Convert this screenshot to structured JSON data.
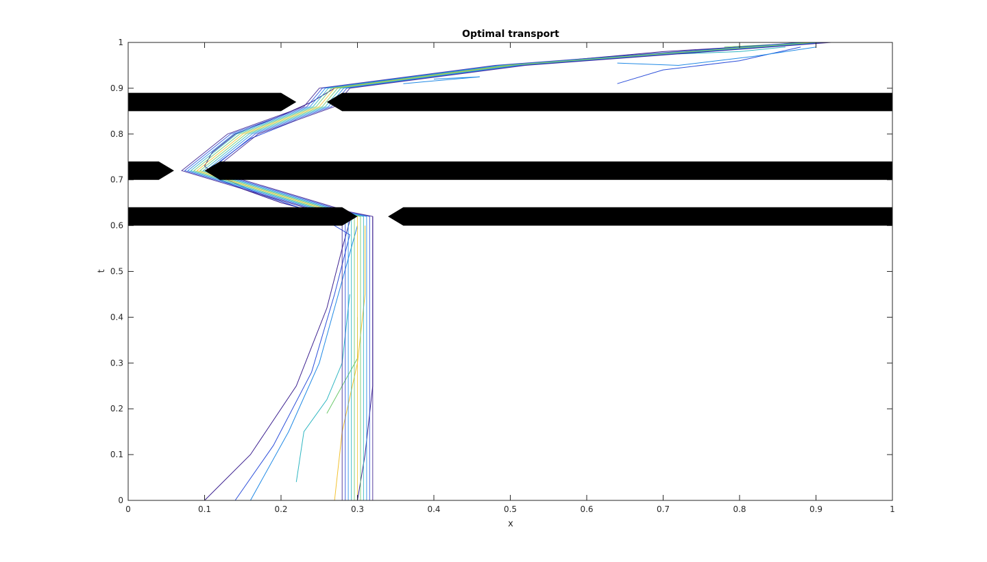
{
  "chart_data": {
    "type": "contour",
    "title": "Optimal transport",
    "xlabel": "x",
    "ylabel": "t",
    "xlim": [
      0,
      1
    ],
    "ylim": [
      0,
      1
    ],
    "xticks": [
      "0",
      "0.1",
      "0.2",
      "0.3",
      "0.4",
      "0.5",
      "0.6",
      "0.7",
      "0.8",
      "0.9",
      "1"
    ],
    "yticks": [
      "0",
      "0.1",
      "0.2",
      "0.3",
      "0.4",
      "0.5",
      "0.6",
      "0.7",
      "0.8",
      "0.9",
      "1"
    ],
    "grid": false,
    "colormap": [
      "#3b1f8f",
      "#2a4dd9",
      "#1e88e5",
      "#2cb5c0",
      "#6cc96a",
      "#f2c12e"
    ],
    "obstacle_color": "#000000",
    "barriers": [
      {
        "t": 0.87,
        "segments": [
          [
            0.0,
            0.22
          ],
          [
            0.26,
            1.0
          ]
        ]
      },
      {
        "t": 0.72,
        "segments": [
          [
            0.0,
            0.06
          ],
          [
            0.1,
            1.0
          ]
        ]
      },
      {
        "t": 0.62,
        "segments": [
          [
            0.0,
            0.3
          ],
          [
            0.34,
            1.0
          ]
        ]
      }
    ],
    "transport_path": [
      [
        0.3,
        0.0
      ],
      [
        0.3,
        0.62
      ],
      [
        0.27,
        0.63
      ],
      [
        0.09,
        0.72
      ],
      [
        0.15,
        0.8
      ],
      [
        0.25,
        0.86
      ],
      [
        0.27,
        0.9
      ],
      [
        0.5,
        0.95
      ],
      [
        0.9,
        1.0
      ]
    ],
    "contour_lines": [
      {
        "level": 1,
        "points": [
          [
            0.1,
            0.0
          ],
          [
            0.16,
            0.1
          ],
          [
            0.22,
            0.25
          ],
          [
            0.26,
            0.42
          ],
          [
            0.28,
            0.55
          ],
          [
            0.29,
            0.61
          ],
          [
            0.2,
            0.65
          ],
          [
            0.15,
            0.68
          ],
          [
            0.12,
            0.7
          ],
          [
            0.1,
            0.73
          ],
          [
            0.11,
            0.76
          ],
          [
            0.14,
            0.8
          ],
          [
            0.2,
            0.84
          ],
          [
            0.24,
            0.87
          ],
          [
            0.27,
            0.9
          ],
          [
            0.35,
            0.92
          ],
          [
            0.5,
            0.95
          ],
          [
            0.7,
            0.98
          ],
          [
            0.9,
            1.0
          ]
        ]
      },
      {
        "level": 2,
        "points": [
          [
            0.14,
            0.0
          ],
          [
            0.19,
            0.12
          ],
          [
            0.24,
            0.28
          ],
          [
            0.27,
            0.45
          ],
          [
            0.29,
            0.58
          ],
          [
            0.24,
            0.63
          ],
          [
            0.17,
            0.67
          ],
          [
            0.13,
            0.7
          ],
          [
            0.12,
            0.74
          ],
          [
            0.16,
            0.79
          ],
          [
            0.22,
            0.83
          ]
        ]
      },
      {
        "level": 3,
        "points": [
          [
            0.16,
            0.0
          ],
          [
            0.21,
            0.15
          ],
          [
            0.25,
            0.3
          ],
          [
            0.28,
            0.48
          ],
          [
            0.3,
            0.6
          ]
        ]
      },
      {
        "level": 4,
        "points": [
          [
            0.22,
            0.04
          ],
          [
            0.23,
            0.15
          ],
          [
            0.26,
            0.22
          ],
          [
            0.28,
            0.3
          ],
          [
            0.29,
            0.45
          ]
        ]
      },
      {
        "level": 5,
        "points": [
          [
            0.26,
            0.19
          ],
          [
            0.28,
            0.25
          ],
          [
            0.3,
            0.31
          ],
          [
            0.3,
            0.4
          ]
        ]
      },
      {
        "level": 6,
        "points": [
          [
            0.27,
            0.0
          ],
          [
            0.28,
            0.15
          ],
          [
            0.3,
            0.3
          ],
          [
            0.31,
            0.45
          ],
          [
            0.31,
            0.6
          ]
        ]
      },
      {
        "level": 1,
        "points": [
          [
            0.3,
            0.0
          ],
          [
            0.31,
            0.1
          ],
          [
            0.32,
            0.25
          ],
          [
            0.32,
            0.45
          ],
          [
            0.32,
            0.62
          ]
        ]
      },
      {
        "level": 3,
        "points": [
          [
            0.4,
            0.92
          ],
          [
            0.46,
            0.925
          ],
          [
            0.36,
            0.91
          ]
        ]
      },
      {
        "level": 2,
        "points": [
          [
            0.64,
            0.91
          ],
          [
            0.7,
            0.94
          ],
          [
            0.8,
            0.96
          ],
          [
            0.88,
            0.99
          ]
        ]
      },
      {
        "level": 3,
        "points": [
          [
            0.64,
            0.955
          ],
          [
            0.72,
            0.95
          ],
          [
            0.82,
            0.97
          ],
          [
            0.9,
            0.99
          ]
        ]
      },
      {
        "level": 4,
        "points": [
          [
            0.72,
            0.975
          ],
          [
            0.8,
            0.98
          ],
          [
            0.86,
            0.99
          ]
        ]
      },
      {
        "level": 5,
        "points": [
          [
            0.78,
            0.99
          ],
          [
            0.84,
            0.995
          ]
        ]
      }
    ]
  }
}
